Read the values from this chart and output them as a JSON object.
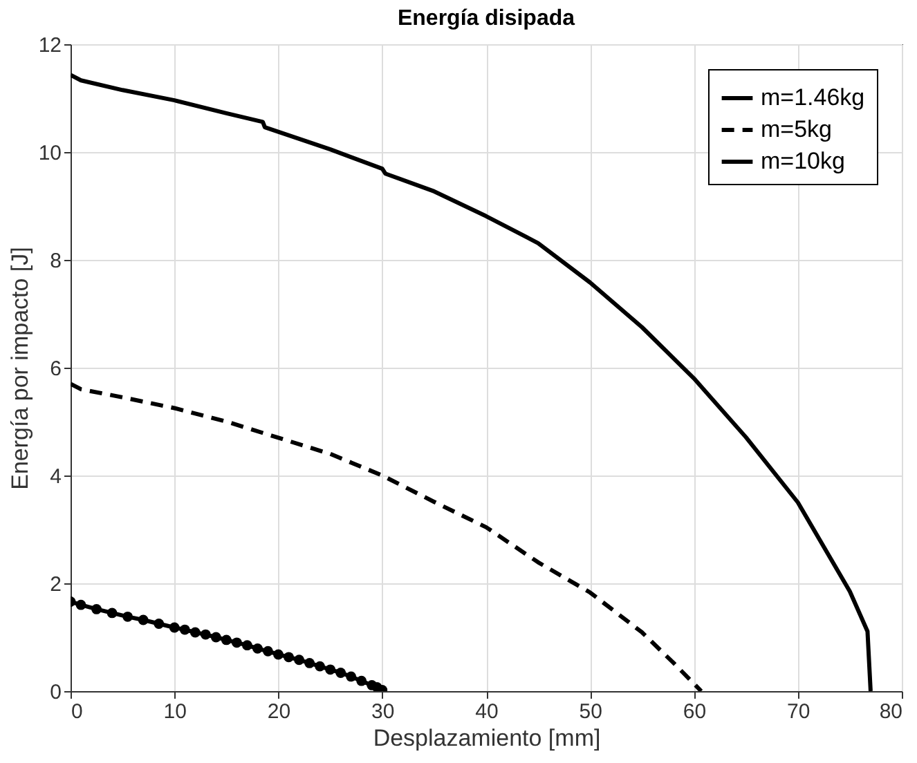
{
  "chart_data": {
    "type": "line",
    "title": "Energía disipada",
    "xlabel": "Desplazamiento [mm]",
    "ylabel": "Energía por impacto [J]",
    "xlim": [
      0,
      80
    ],
    "ylim": [
      0,
      12
    ],
    "xticks": [
      0,
      10,
      20,
      30,
      40,
      50,
      60,
      70,
      80
    ],
    "yticks": [
      0,
      2,
      4,
      6,
      8,
      10,
      12
    ],
    "grid": true,
    "legend": "top right",
    "series": [
      {
        "name": "m=1.46kg",
        "color": "#000000",
        "line_style": "solid",
        "marker": "circle",
        "x": [
          0,
          1,
          2.5,
          4,
          5.5,
          7,
          8.5,
          10,
          11,
          12,
          13,
          14,
          15,
          16,
          17,
          18,
          19,
          20,
          21,
          22,
          23,
          24,
          25,
          26,
          27,
          28,
          29,
          29.5,
          30
        ],
        "values": [
          1.66,
          1.6,
          1.52,
          1.45,
          1.38,
          1.32,
          1.25,
          1.18,
          1.14,
          1.09,
          1.05,
          1.0,
          0.95,
          0.9,
          0.85,
          0.79,
          0.74,
          0.68,
          0.63,
          0.58,
          0.52,
          0.46,
          0.4,
          0.34,
          0.27,
          0.19,
          0.11,
          0.07,
          0.02
        ]
      },
      {
        "name": "m=5kg",
        "color": "#000000",
        "line_style": "dashed",
        "marker": "none",
        "x": [
          0,
          1,
          5,
          10,
          15,
          20,
          25,
          30,
          35,
          40,
          45,
          50,
          55,
          58,
          60.7
        ],
        "values": [
          5.7,
          5.6,
          5.45,
          5.25,
          5.0,
          4.7,
          4.4,
          4.0,
          3.51,
          3.04,
          2.39,
          1.83,
          1.09,
          0.53,
          0
        ]
      },
      {
        "name": "m=10kg",
        "color": "#000000",
        "line_style": "solid",
        "marker": "none",
        "x": [
          0,
          1,
          5,
          10,
          15,
          18.5,
          18.7,
          25,
          30,
          30.3,
          35,
          40,
          45,
          50,
          55,
          60,
          65,
          70,
          75,
          76.7,
          77
        ],
        "values": [
          11.43,
          11.33,
          11.15,
          10.96,
          10.72,
          10.56,
          10.46,
          10.05,
          9.69,
          9.6,
          9.27,
          8.81,
          8.31,
          7.58,
          6.75,
          5.8,
          4.71,
          3.5,
          1.85,
          1.11,
          0
        ]
      }
    ]
  }
}
